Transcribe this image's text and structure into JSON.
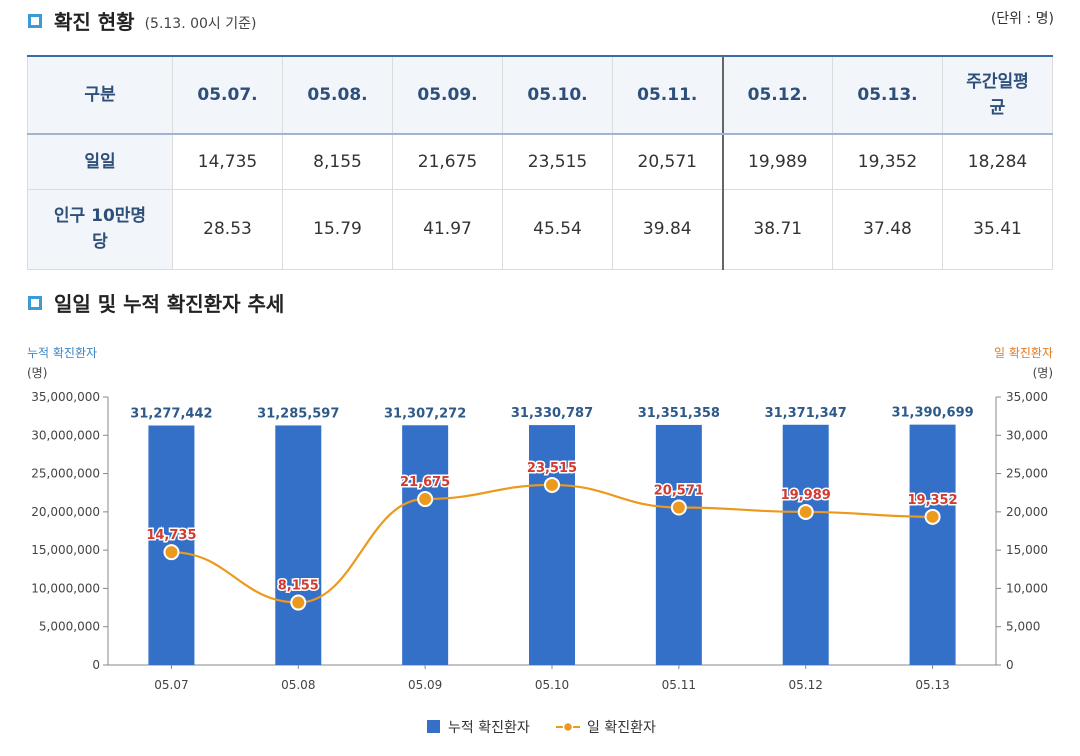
{
  "status_section": {
    "title": "확진 현황",
    "subtitle": "(5.13. 00시 기준)",
    "unit": "(단위 : 명)"
  },
  "table": {
    "header": [
      "구분",
      "05.07.",
      "05.08.",
      "05.09.",
      "05.10.",
      "05.11.",
      "05.12.",
      "05.13.",
      "주간일평\n균"
    ],
    "rows": [
      {
        "label": "일일",
        "values": [
          "14,735",
          "8,155",
          "21,675",
          "23,515",
          "20,571",
          "19,989",
          "19,352",
          "18,284"
        ]
      },
      {
        "label": "인구 10만명\n당",
        "values": [
          "28.53",
          "15.79",
          "41.97",
          "45.54",
          "39.84",
          "38.71",
          "37.48",
          "35.41"
        ]
      }
    ]
  },
  "trend_section": {
    "title": "일일 및 누적 확진환자 추세"
  },
  "chart_data": {
    "type": "bar",
    "categories": [
      "05.07",
      "05.08",
      "05.09",
      "05.10",
      "05.11",
      "05.12",
      "05.13"
    ],
    "series": [
      {
        "name": "누적 확진환자",
        "type": "bar",
        "axis": "left",
        "color": "#3570c8",
        "values": [
          31277442,
          31285597,
          31307272,
          31330787,
          31351358,
          31371347,
          31390699
        ],
        "labels": [
          "31,277,442",
          "31,285,597",
          "31,307,272",
          "31,330,787",
          "31,351,358",
          "31,371,347",
          "31,390,699"
        ]
      },
      {
        "name": "일 확진환자",
        "type": "line",
        "axis": "right",
        "color": "#ec9a1e",
        "values": [
          14735,
          8155,
          21675,
          23515,
          20571,
          19989,
          19352
        ],
        "labels": [
          "14,735",
          "8,155",
          "21,675",
          "23,515",
          "20,571",
          "19,989",
          "19,352"
        ]
      }
    ],
    "left_axis": {
      "title": "누적 확진환자",
      "unit": "(명)",
      "ylim": [
        0,
        35000000
      ],
      "ticks": [
        "0",
        "5,000,000",
        "10,000,000",
        "15,000,000",
        "20,000,000",
        "25,000,000",
        "30,000,000",
        "35,000,000"
      ]
    },
    "right_axis": {
      "title": "일 확진환자",
      "unit": "(명)",
      "ylim": [
        0,
        35000
      ],
      "ticks": [
        "0",
        "5,000",
        "10,000",
        "15,000",
        "20,000",
        "25,000",
        "30,000",
        "35,000"
      ]
    },
    "legend": "bottom-center",
    "grid": false
  }
}
